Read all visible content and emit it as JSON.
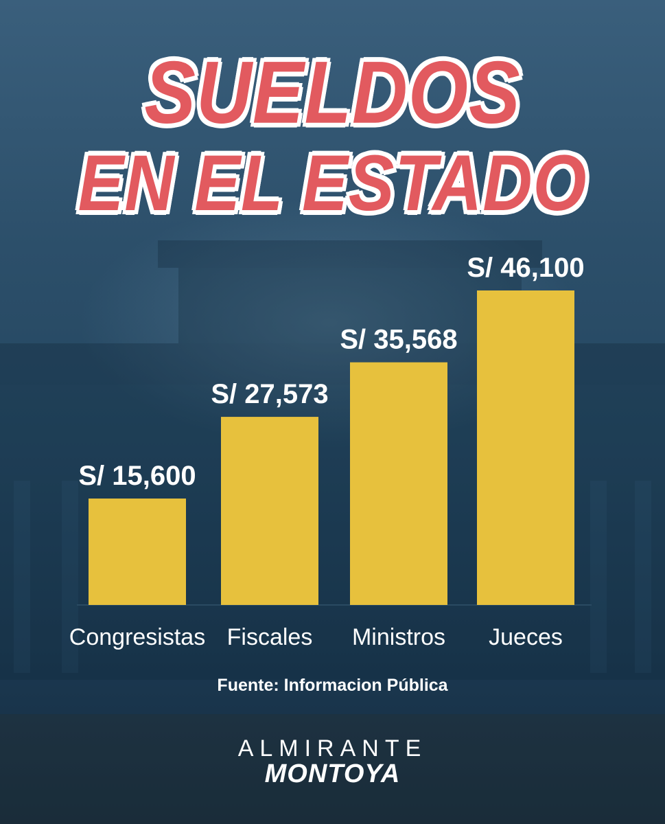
{
  "title": {
    "line1": "SUELDOS",
    "line2": "EN EL ESTADO"
  },
  "source": "Fuente: Informacion Pública",
  "brand": {
    "line1": "ALMIRANTE",
    "line2": "MONTOYA"
  },
  "colors": {
    "bar": "#e7c13d",
    "title": "#e25a5f",
    "background": "#244660"
  },
  "chart_data": {
    "type": "bar",
    "title": "SUELDOS EN EL ESTADO",
    "categories": [
      "Congresistas",
      "Fiscales",
      "Ministros",
      "Jueces"
    ],
    "values": [
      15600,
      27573,
      35568,
      46100
    ],
    "value_labels": [
      "S/ 15,600",
      "S/ 27,573",
      "S/ 35,568",
      "S/ 46,100"
    ],
    "xlabel": "",
    "ylabel": "",
    "ylim": [
      0,
      46100
    ],
    "grid": false,
    "legend": "none"
  }
}
